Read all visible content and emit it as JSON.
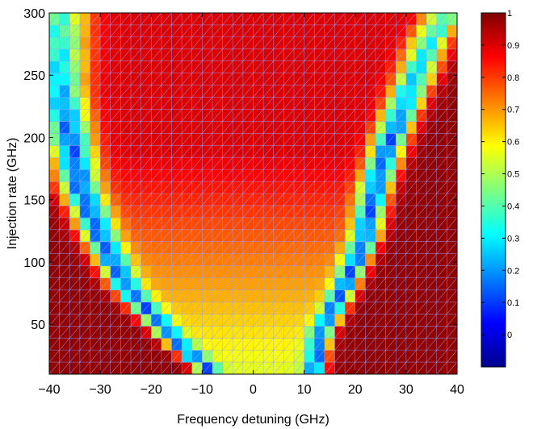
{
  "chart_data": {
    "type": "heatmap",
    "xlabel": "Frequency detuning (GHz)",
    "ylabel": "Injection rate (GHz)",
    "xlim": [
      -40,
      40
    ],
    "ylim": [
      10,
      300
    ],
    "xticks": [
      -40,
      -30,
      -20,
      -10,
      0,
      10,
      20,
      30,
      40
    ],
    "xtick_labels": [
      "−40",
      "−30",
      "−20",
      "−10",
      "0",
      "10",
      "20",
      "30",
      "40"
    ],
    "yticks": [
      50,
      100,
      150,
      200,
      250,
      300
    ],
    "ytick_labels": [
      "50",
      "100",
      "150",
      "200",
      "250",
      "300"
    ],
    "colorbar": {
      "range": [
        -0.1,
        1.0
      ],
      "ticks": [
        0,
        0.1,
        0.2,
        0.3,
        0.4,
        0.5,
        0.6,
        0.7,
        0.8,
        0.9,
        1
      ],
      "tick_labels": [
        "0",
        "0.1",
        "0.2",
        "0.3",
        "0.4",
        "0.5",
        "0.6",
        "0.7",
        "0.8",
        "0.9",
        "1"
      ],
      "colormap": "jet"
    },
    "grid_resolution": {
      "x_points": 41,
      "y_points": 30
    },
    "mesh_color": "#9aa6ff",
    "valley_boundary_left": {
      "y": [
        10,
        40,
        80,
        120,
        160,
        200,
        240
      ],
      "x": [
        -8,
        -16,
        -25,
        -30,
        -34,
        -36,
        -38
      ]
    },
    "valley_boundary_right": {
      "y": [
        10,
        40,
        80,
        120,
        160,
        200,
        240,
        280,
        300
      ],
      "x": [
        12,
        13,
        18,
        22,
        24,
        27,
        31,
        35,
        38
      ]
    },
    "valley_minimum_value": 0.15,
    "outside_value": 0.98,
    "interior_value_range": [
      0.55,
      0.9
    ],
    "grid": true
  }
}
